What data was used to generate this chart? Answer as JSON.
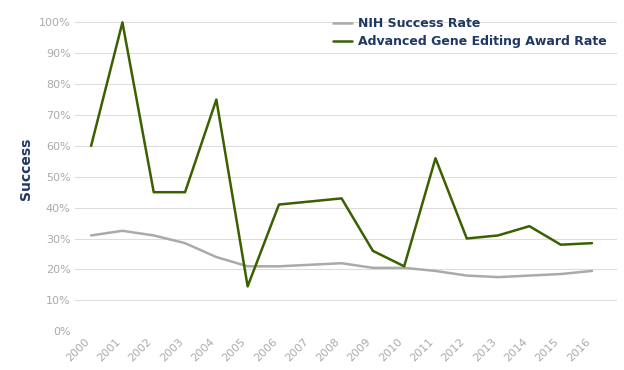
{
  "years": [
    2000,
    2001,
    2002,
    2003,
    2004,
    2005,
    2006,
    2007,
    2008,
    2009,
    2010,
    2011,
    2012,
    2013,
    2014,
    2015,
    2016
  ],
  "nih_rate": [
    0.31,
    0.325,
    0.31,
    0.285,
    0.24,
    0.21,
    0.21,
    0.215,
    0.22,
    0.205,
    0.205,
    0.195,
    0.18,
    0.175,
    0.18,
    0.185,
    0.195
  ],
  "gene_editing_rate": [
    0.6,
    1.0,
    0.45,
    0.45,
    0.75,
    0.145,
    0.41,
    0.42,
    0.43,
    0.26,
    0.21,
    0.56,
    0.3,
    0.31,
    0.34,
    0.28,
    0.285
  ],
  "nih_color": "#aaaaaa",
  "gene_color": "#3a6000",
  "nih_label": "NIH Success Rate",
  "gene_label": "Advanced Gene Editing Award Rate",
  "ylabel": "Success",
  "ylim": [
    0,
    1.05
  ],
  "yticks": [
    0.0,
    0.1,
    0.2,
    0.3,
    0.4,
    0.5,
    0.6,
    0.7,
    0.8,
    0.9,
    1.0
  ],
  "background_color": "#ffffff",
  "plot_bg_color": "#ffffff",
  "tick_label_color": "#aaaaaa",
  "ylabel_color": "#1f3864",
  "legend_text_color": "#1f3864",
  "grid_color": "#dddddd",
  "line_width": 1.8
}
